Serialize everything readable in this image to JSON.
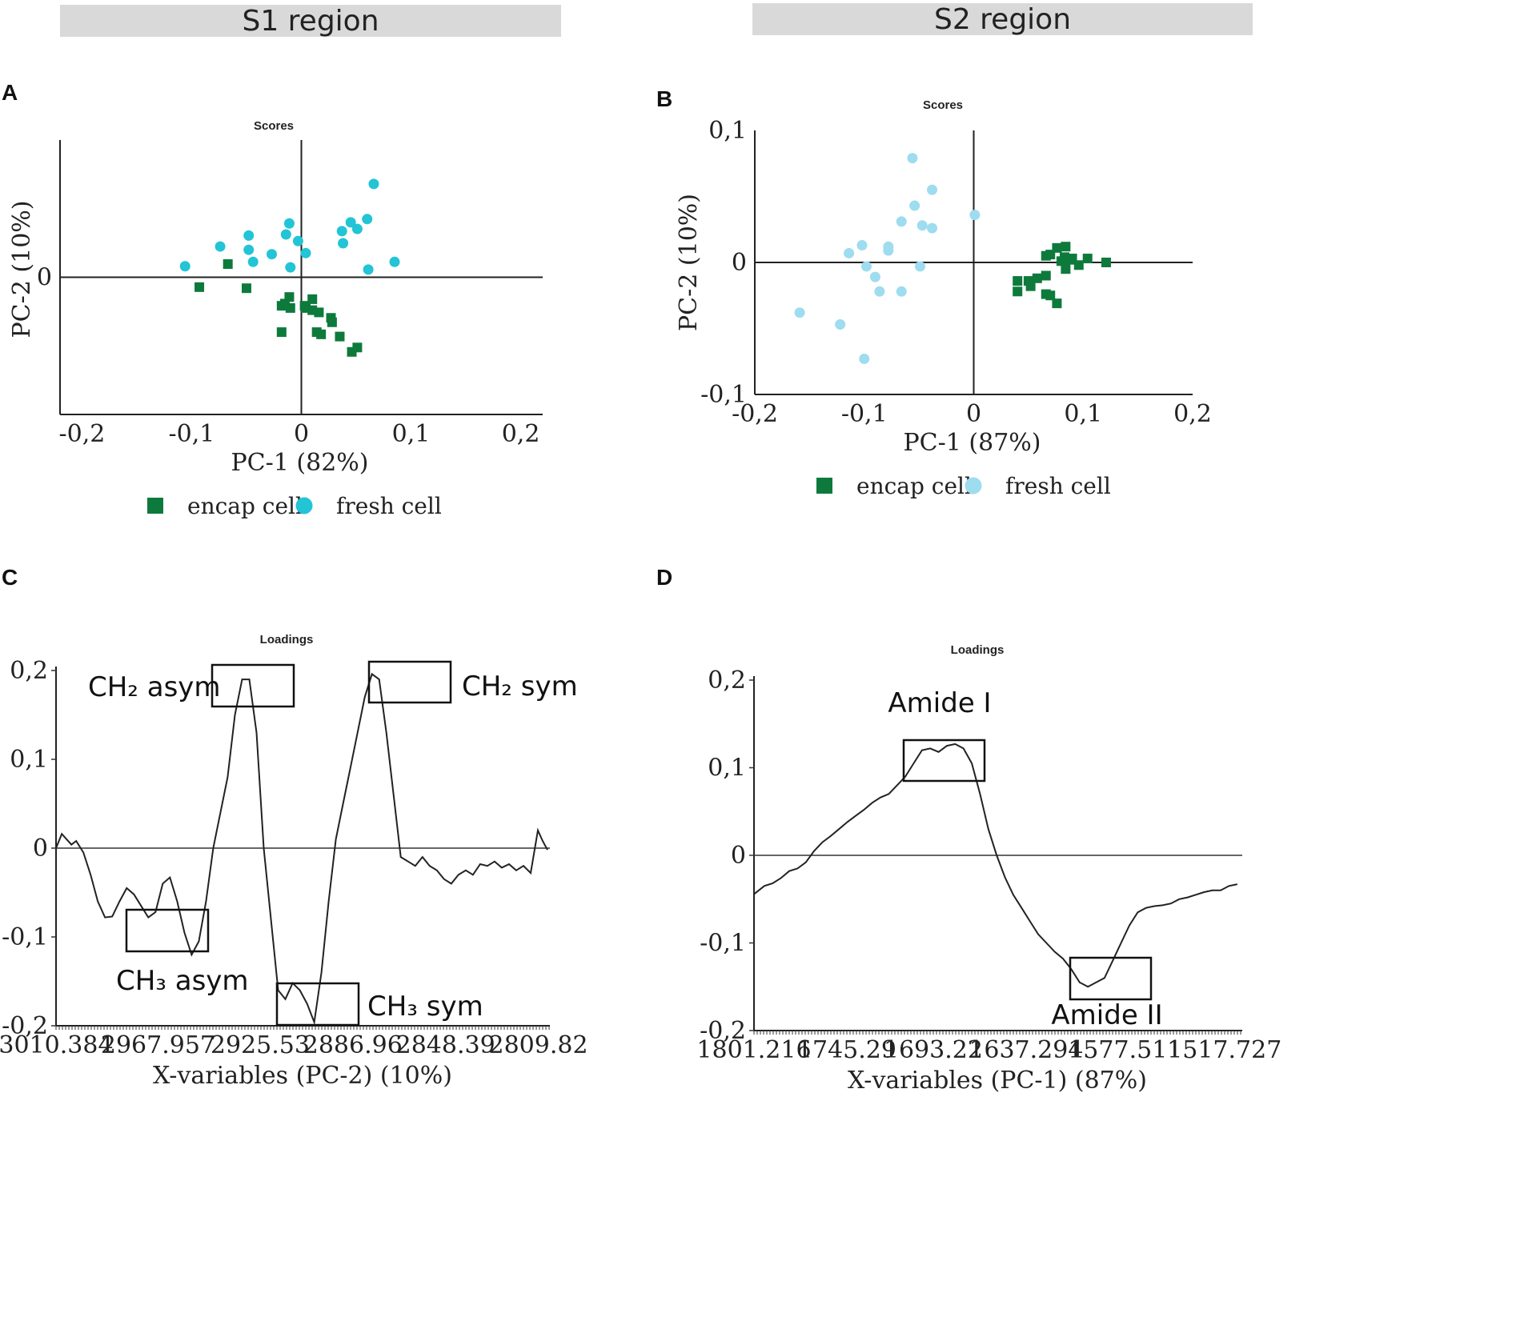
{
  "regions": {
    "s1": "S1 region",
    "s2": "S2 region"
  },
  "panels": {
    "a": "A",
    "b": "B",
    "c": "C",
    "d": "D"
  },
  "colors": {
    "encap": "#0d7a3c",
    "fresh_a": "#22c4d6",
    "fresh_b": "#9edcf0",
    "line": "#222222"
  },
  "chart_data": [
    {
      "id": "A",
      "type": "scatter",
      "title": "Scores",
      "xlabel": "PC-1 (82%)",
      "ylabel": "PC-2 (10%)",
      "xlim": [
        -0.22,
        0.22
      ],
      "ylim": [
        -0.125,
        0.125
      ],
      "xticks": [
        "-0,2",
        "-0,1",
        "0",
        "0,1",
        "0,2"
      ],
      "xtick_values": [
        -0.2,
        -0.1,
        0,
        0.1,
        0.2
      ],
      "yticks": [
        "0"
      ],
      "ytick_values": [
        0
      ],
      "legend": [
        "encap cell",
        "fresh cell"
      ],
      "series": [
        {
          "name": "encap cell",
          "marker": "square",
          "points": [
            [
              -0.093,
              -0.009
            ],
            [
              -0.067,
              0.012
            ],
            [
              -0.05,
              -0.01
            ],
            [
              -0.018,
              -0.026
            ],
            [
              -0.015,
              -0.024
            ],
            [
              -0.011,
              -0.018
            ],
            [
              -0.01,
              -0.028
            ],
            [
              -0.018,
              -0.05
            ],
            [
              0.003,
              -0.026
            ],
            [
              0.004,
              -0.028
            ],
            [
              0.01,
              -0.02
            ],
            [
              0.01,
              -0.03
            ],
            [
              0.016,
              -0.032
            ],
            [
              0.014,
              -0.05
            ],
            [
              0.018,
              -0.052
            ],
            [
              0.027,
              -0.037
            ],
            [
              0.028,
              -0.041
            ],
            [
              0.035,
              -0.054
            ],
            [
              0.046,
              -0.068
            ],
            [
              0.051,
              -0.064
            ]
          ]
        },
        {
          "name": "fresh cell",
          "marker": "circle",
          "points": [
            [
              -0.106,
              0.01
            ],
            [
              -0.074,
              0.028
            ],
            [
              -0.048,
              0.038
            ],
            [
              -0.048,
              0.025
            ],
            [
              -0.044,
              0.014
            ],
            [
              -0.027,
              0.021
            ],
            [
              -0.014,
              0.039
            ],
            [
              -0.011,
              0.049
            ],
            [
              -0.01,
              0.009
            ],
            [
              -0.003,
              0.033
            ],
            [
              0.004,
              0.022
            ],
            [
              0.037,
              0.042
            ],
            [
              0.038,
              0.031
            ],
            [
              0.045,
              0.05
            ],
            [
              0.051,
              0.044
            ],
            [
              0.06,
              0.053
            ],
            [
              0.061,
              0.007
            ],
            [
              0.066,
              0.085
            ],
            [
              0.085,
              0.014
            ]
          ]
        }
      ]
    },
    {
      "id": "B",
      "type": "scatter",
      "title": "Scores",
      "xlabel": "PC-1 (87%)",
      "ylabel": "PC-2 (10%)",
      "xlim": [
        -0.2,
        0.2
      ],
      "ylim": [
        -0.1,
        0.1
      ],
      "xticks": [
        "-0,2",
        "-0,1",
        "0",
        "0,1",
        "0,2"
      ],
      "xtick_values": [
        -0.2,
        -0.1,
        0,
        0.1,
        0.2
      ],
      "yticks": [
        "-0,1",
        "0",
        "0,1"
      ],
      "ytick_values": [
        -0.1,
        0,
        0.1
      ],
      "legend": [
        "encap cell",
        "fresh cell"
      ],
      "series": [
        {
          "name": "encap cell",
          "marker": "square",
          "points": [
            [
              0.04,
              -0.014
            ],
            [
              0.04,
              -0.022
            ],
            [
              0.05,
              -0.014
            ],
            [
              0.052,
              -0.018
            ],
            [
              0.058,
              -0.012
            ],
            [
              0.066,
              -0.01
            ],
            [
              0.066,
              0.005
            ],
            [
              0.066,
              -0.024
            ],
            [
              0.07,
              0.006
            ],
            [
              0.07,
              -0.025
            ],
            [
              0.076,
              0.011
            ],
            [
              0.076,
              -0.031
            ],
            [
              0.08,
              0.001
            ],
            [
              0.083,
              0.004
            ],
            [
              0.084,
              0.012
            ],
            [
              0.084,
              -0.005
            ],
            [
              0.088,
              0.002
            ],
            [
              0.09,
              0.003
            ],
            [
              0.096,
              -0.002
            ],
            [
              0.104,
              0.003
            ],
            [
              0.121,
              0.0
            ]
          ]
        },
        {
          "name": "fresh cell",
          "marker": "circle",
          "points": [
            [
              -0.159,
              -0.038
            ],
            [
              -0.122,
              -0.047
            ],
            [
              -0.114,
              0.007
            ],
            [
              -0.102,
              0.013
            ],
            [
              -0.1,
              -0.073
            ],
            [
              -0.098,
              -0.003
            ],
            [
              -0.09,
              -0.011
            ],
            [
              -0.086,
              -0.022
            ],
            [
              -0.078,
              0.012
            ],
            [
              -0.078,
              0.009
            ],
            [
              -0.066,
              0.031
            ],
            [
              -0.066,
              -0.022
            ],
            [
              -0.056,
              0.079
            ],
            [
              -0.054,
              0.043
            ],
            [
              -0.049,
              -0.003
            ],
            [
              -0.047,
              0.028
            ],
            [
              -0.038,
              0.055
            ],
            [
              -0.038,
              0.026
            ],
            [
              0.001,
              0.036
            ]
          ]
        }
      ]
    },
    {
      "id": "C",
      "type": "line",
      "title": "Loadings",
      "xlabel": "X-variables (PC-2) (10%)",
      "ylabel": "",
      "xlim": [
        3010.384,
        2805
      ],
      "ylim": [
        -0.2,
        0.2
      ],
      "xticks": [
        "3010.384",
        "2967.957",
        "2925.53",
        "2886.96",
        "2848.39",
        "2809.82"
      ],
      "xtick_values": [
        3010.384,
        2967.957,
        2925.53,
        2886.96,
        2848.39,
        2809.82
      ],
      "yticks": [
        "-0,2",
        "-0,1",
        "0",
        "0,1",
        "0,2"
      ],
      "ytick_values": [
        -0.2,
        -0.1,
        0,
        0.1,
        0.2
      ],
      "annotations": [
        "CH₂ asym",
        "CH₂ sym",
        "CH₃ asym",
        "CH₃ sym"
      ],
      "x": [
        3010.4,
        3008,
        3006,
        3004,
        3002,
        2999,
        2996,
        2993,
        2990,
        2987,
        2984,
        2981,
        2978,
        2975,
        2972,
        2969,
        2966,
        2963,
        2960,
        2957,
        2954,
        2951,
        2948,
        2945,
        2942,
        2939,
        2936,
        2933,
        2930,
        2927,
        2924,
        2921,
        2918,
        2915,
        2912,
        2909,
        2906,
        2903,
        2900,
        2897,
        2894,
        2891,
        2888,
        2885,
        2882,
        2879,
        2876,
        2873,
        2870,
        2867,
        2864,
        2861,
        2858,
        2855,
        2852,
        2849,
        2846,
        2843,
        2840,
        2837,
        2834,
        2831,
        2828,
        2825,
        2822,
        2819,
        2816,
        2813,
        2810,
        2808,
        2806
      ],
      "y": [
        0.0,
        0.016,
        0.01,
        0.004,
        0.008,
        -0.005,
        -0.03,
        -0.06,
        -0.078,
        -0.077,
        -0.06,
        -0.045,
        -0.052,
        -0.065,
        -0.078,
        -0.072,
        -0.04,
        -0.033,
        -0.06,
        -0.095,
        -0.12,
        -0.105,
        -0.06,
        -0.0,
        0.04,
        0.08,
        0.15,
        0.19,
        0.19,
        0.13,
        0.0,
        -0.08,
        -0.16,
        -0.17,
        -0.152,
        -0.16,
        -0.175,
        -0.196,
        -0.14,
        -0.06,
        0.01,
        0.05,
        0.09,
        0.13,
        0.17,
        0.196,
        0.19,
        0.13,
        0.06,
        -0.01,
        -0.015,
        -0.02,
        -0.01,
        -0.02,
        -0.025,
        -0.035,
        -0.04,
        -0.03,
        -0.025,
        -0.03,
        -0.018,
        -0.02,
        -0.015,
        -0.022,
        -0.018,
        -0.025,
        -0.02,
        -0.028,
        0.02,
        0.008,
        -0.002
      ]
    },
    {
      "id": "D",
      "type": "line",
      "title": "Loadings",
      "xlabel": "X-variables (PC-1) (87%)",
      "ylabel": "",
      "xlim": [
        1801.216,
        1507
      ],
      "ylim": [
        -0.2,
        0.2
      ],
      "xticks": [
        "1801.216",
        "1745.29",
        "1693.22",
        "1637.294",
        "1577.511",
        "1517.727"
      ],
      "xtick_values": [
        1801.216,
        1745.29,
        1693.22,
        1637.294,
        1577.511,
        1517.727
      ],
      "yticks": [
        "-0,2",
        "-0,1",
        "0",
        "0,1",
        "0,2"
      ],
      "ytick_values": [
        -0.2,
        -0.1,
        0,
        0.1,
        0.2
      ],
      "annotations": [
        "Amide I",
        "Amide II"
      ],
      "x": [
        1801,
        1795,
        1790,
        1785,
        1780,
        1775,
        1770,
        1765,
        1760,
        1755,
        1750,
        1745,
        1740,
        1735,
        1730,
        1725,
        1720,
        1715,
        1710,
        1705,
        1700,
        1695,
        1690,
        1685,
        1680,
        1675,
        1670,
        1665,
        1660,
        1655,
        1650,
        1645,
        1640,
        1635,
        1630,
        1625,
        1620,
        1615,
        1610,
        1605,
        1600,
        1595,
        1590,
        1585,
        1580,
        1575,
        1570,
        1565,
        1560,
        1555,
        1550,
        1545,
        1540,
        1535,
        1530,
        1525,
        1520,
        1515,
        1510
      ],
      "y": [
        -0.044,
        -0.035,
        -0.032,
        -0.026,
        -0.018,
        -0.015,
        -0.008,
        0.005,
        0.015,
        0.022,
        0.03,
        0.038,
        0.045,
        0.052,
        0.06,
        0.066,
        0.07,
        0.08,
        0.09,
        0.105,
        0.12,
        0.122,
        0.118,
        0.125,
        0.127,
        0.122,
        0.105,
        0.07,
        0.03,
        0.0,
        -0.025,
        -0.045,
        -0.06,
        -0.075,
        -0.09,
        -0.1,
        -0.11,
        -0.118,
        -0.13,
        -0.145,
        -0.15,
        -0.145,
        -0.14,
        -0.12,
        -0.1,
        -0.08,
        -0.065,
        -0.06,
        -0.058,
        -0.057,
        -0.055,
        -0.05,
        -0.048,
        -0.045,
        -0.042,
        -0.04,
        -0.04,
        -0.035,
        -0.033
      ]
    }
  ]
}
